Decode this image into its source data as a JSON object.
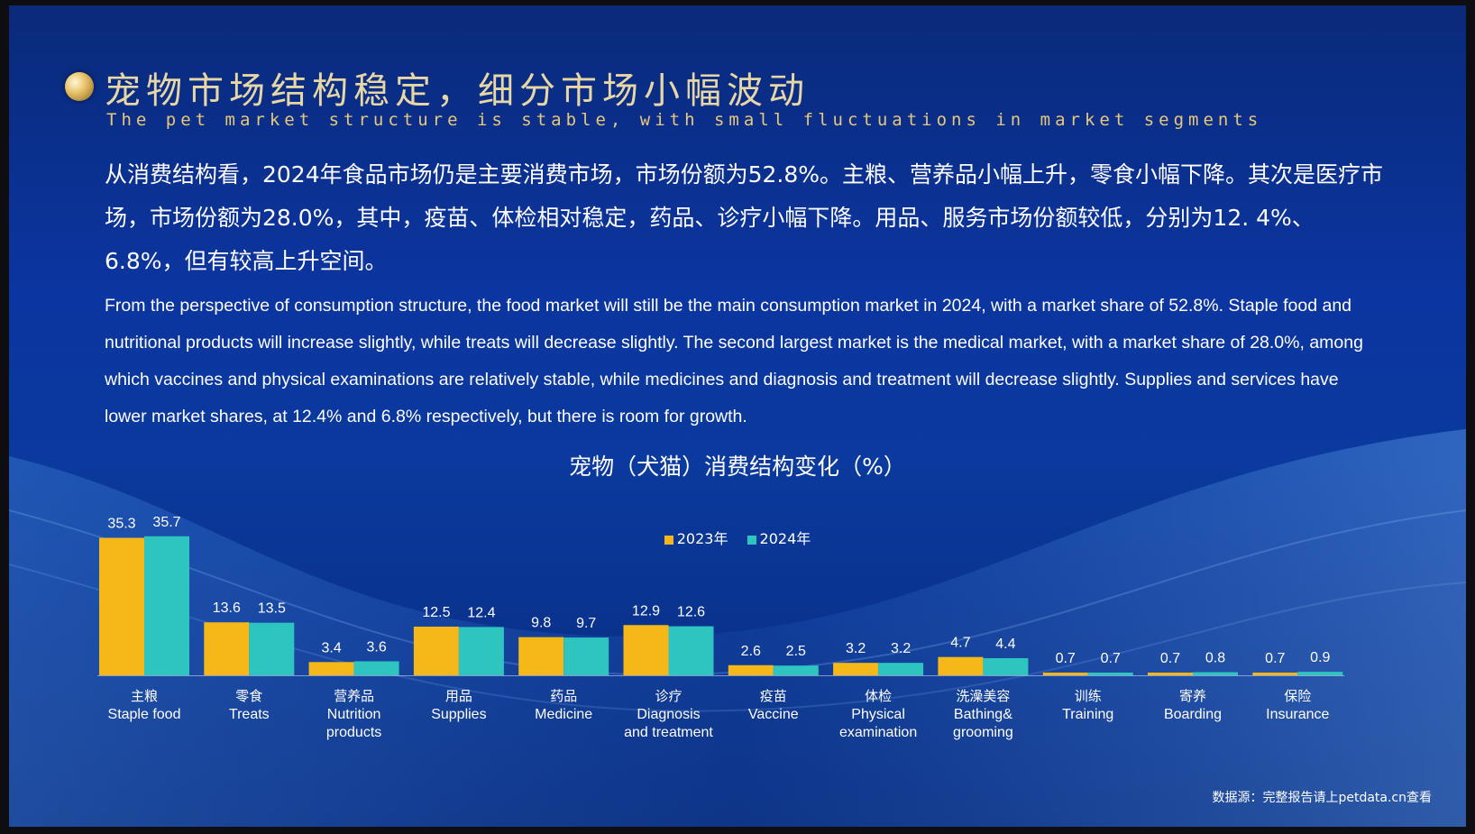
{
  "title": {
    "cn": "宠物市场结构稳定，细分市场小幅波动",
    "en": "The pet market structure is stable, with small fluctuations in market segments"
  },
  "paragraph_cn": "从消费结构看，2024年食品市场仍是主要消费市场，市场份额为52.8%。主粮、营养品小幅上升，零食小幅下降。其次是医疗市场，市场份额为28.0%，其中，疫苗、体检相对稳定，药品、诊疗小幅下降。用品、服务市场份额较低，分别为12. 4%、6.8%，但有较高上升空间。",
  "paragraph_en": "From the perspective of consumption structure, the food market will still be the main consumption market in 2024, with a market share of 52.8%. Staple food and nutritional products will increase slightly, while treats will decrease slightly. The second largest market is the medical market, with a market share of 28.0%, among which vaccines and physical examinations are relatively stable, while medicines and diagnosis and treatment will decrease slightly. Supplies and services have lower market shares, at 12.4% and 6.8% respectively, but there is room for growth.",
  "source": "数据源：完整报告请上petdata.cn查看",
  "colors": {
    "series_2023": "#f5b818",
    "series_2024": "#2ec4c0"
  },
  "chart_data": {
    "type": "bar",
    "title": "宠物（犬猫）消费结构变化（%）",
    "categories": [
      {
        "cn": "主粮",
        "en": [
          "Staple food"
        ]
      },
      {
        "cn": "零食",
        "en": [
          "Treats"
        ]
      },
      {
        "cn": "营养品",
        "en": [
          "Nutrition",
          "products"
        ]
      },
      {
        "cn": "用品",
        "en": [
          "Supplies"
        ]
      },
      {
        "cn": "药品",
        "en": [
          "Medicine"
        ]
      },
      {
        "cn": "诊疗",
        "en": [
          "Diagnosis",
          "and treatment"
        ]
      },
      {
        "cn": "疫苗",
        "en": [
          "Vaccine"
        ]
      },
      {
        "cn": "体检",
        "en": [
          "Physical",
          "examination"
        ]
      },
      {
        "cn": "洗澡美容",
        "en": [
          "Bathing&",
          "grooming"
        ]
      },
      {
        "cn": "训练",
        "en": [
          "Training"
        ]
      },
      {
        "cn": "寄养",
        "en": [
          "Boarding"
        ]
      },
      {
        "cn": "保险",
        "en": [
          "Insurance"
        ]
      }
    ],
    "series": [
      {
        "name": "2023年",
        "values": [
          35.3,
          13.6,
          3.4,
          12.5,
          9.8,
          12.9,
          2.6,
          3.2,
          4.7,
          0.7,
          0.7,
          0.7
        ]
      },
      {
        "name": "2024年",
        "values": [
          35.7,
          13.5,
          3.6,
          12.4,
          9.7,
          12.6,
          2.5,
          3.2,
          4.4,
          0.7,
          0.8,
          0.9
        ]
      }
    ],
    "legend_position": "top-center",
    "grid": false
  }
}
